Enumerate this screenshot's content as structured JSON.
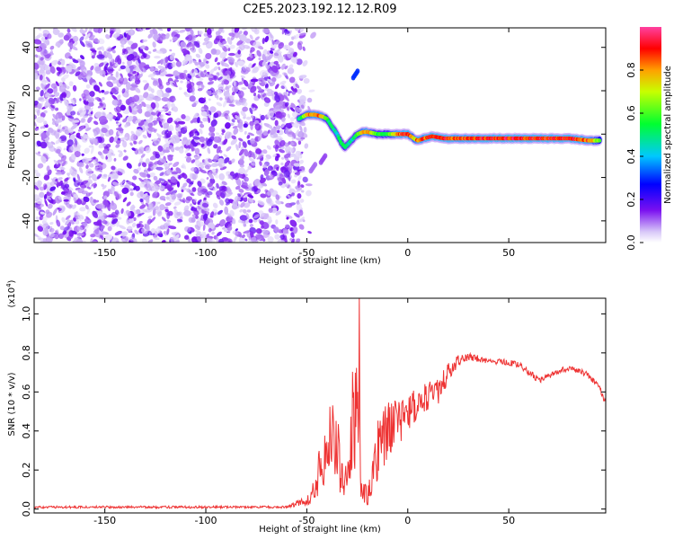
{
  "chart_data": [
    {
      "type": "heatmap",
      "title": "C2E5.2023.192.12.12.R09",
      "xlabel": "Height of straight line (km)",
      "ylabel": "Frequency (Hz)",
      "xlim": [
        -185,
        98
      ],
      "ylim": [
        -50,
        49
      ],
      "xticks": [
        -150,
        -100,
        -50,
        0,
        50
      ],
      "yticks": [
        -40,
        -20,
        0,
        20,
        40
      ],
      "grid": false,
      "colorbar": {
        "label": "Normalized spectral amplitude",
        "ticks": [
          "0.0",
          "0.2",
          "0.4",
          "0.6",
          "0.8"
        ],
        "range": [
          0,
          1
        ],
        "colormap": "rainbow (purple-blue-cyan-green-yellow-red-magenta)"
      },
      "noise_region": {
        "x_from": -185,
        "x_to": -52,
        "level": 0.1
      },
      "ridge": {
        "x": [
          -54,
          -50,
          -46,
          -42,
          -40,
          -38,
          -35,
          -33,
          -31,
          -28,
          -25,
          -22,
          -20,
          -15,
          -10,
          -5,
          0,
          3,
          5,
          8,
          12,
          18,
          25,
          40,
          60,
          80,
          90,
          95
        ],
        "freq": [
          7,
          9,
          9,
          8,
          7,
          4,
          0,
          -4,
          -6,
          -3,
          0,
          1,
          1,
          0,
          0,
          0,
          0,
          -2,
          -3,
          -2,
          -1,
          -2,
          -2,
          -2,
          -2,
          -2,
          -3,
          -3
        ],
        "amplitude": [
          0.5,
          0.75,
          0.85,
          0.8,
          0.55,
          0.5,
          0.45,
          0.55,
          0.5,
          0.45,
          0.55,
          0.8,
          0.85,
          0.55,
          0.55,
          0.85,
          0.9,
          0.7,
          0.85,
          0.85,
          0.9,
          0.9,
          0.85,
          0.9,
          0.9,
          0.9,
          0.85,
          0.6
        ]
      },
      "isolated_blobs": [
        {
          "x": -27,
          "freq": 26,
          "amplitude": 0.3
        },
        {
          "x": -48,
          "freq": -17,
          "amplitude": 0.1
        },
        {
          "x": -43,
          "freq": -13,
          "amplitude": 0.12
        }
      ]
    },
    {
      "type": "line",
      "title": "",
      "xlabel": "Height of straight line (km)",
      "ylabel": "SNR (10 * v/v)",
      "y_multiplier": "(x10",
      "y_multiplier_exp": "4",
      "y_multiplier_close": ")",
      "xlim": [
        -185,
        98
      ],
      "ylim": [
        -0.02,
        1.08
      ],
      "xticks": [
        -150,
        -100,
        -50,
        0,
        50
      ],
      "yticks": [
        "0.0",
        "0.2",
        "0.4",
        "0.6",
        "0.8",
        "1.0"
      ],
      "grid": false,
      "series": [
        {
          "color": "#ee3333",
          "x": [
            -185,
            -60,
            -48,
            -42,
            -38,
            -35,
            -30,
            -27,
            -25,
            -23,
            -20,
            -15,
            -10,
            -5,
            0,
            5,
            10,
            15,
            20,
            25,
            30,
            35,
            40,
            50,
            55,
            60,
            65,
            70,
            75,
            80,
            85,
            90,
            95,
            98
          ],
          "y": [
            0.01,
            0.01,
            0.05,
            0.25,
            0.35,
            0.3,
            0.12,
            0.5,
            0.5,
            0.15,
            0.05,
            0.3,
            0.4,
            0.45,
            0.48,
            0.55,
            0.58,
            0.6,
            0.7,
            0.76,
            0.78,
            0.77,
            0.76,
            0.75,
            0.74,
            0.7,
            0.66,
            0.68,
            0.71,
            0.72,
            0.71,
            0.68,
            0.62,
            0.54
          ],
          "noise": [
            0.006,
            0.006,
            0.03,
            0.15,
            0.2,
            0.2,
            0.08,
            0.3,
            0.3,
            0.1,
            0.04,
            0.15,
            0.15,
            0.12,
            0.1,
            0.09,
            0.08,
            0.07,
            0.05,
            0.03,
            0.02,
            0.02,
            0.015,
            0.015,
            0.015,
            0.015,
            0.015,
            0.015,
            0.015,
            0.015,
            0.015,
            0.015,
            0.015,
            0.015
          ],
          "peak": {
            "x": -24,
            "y": 1.08
          }
        }
      ]
    }
  ]
}
